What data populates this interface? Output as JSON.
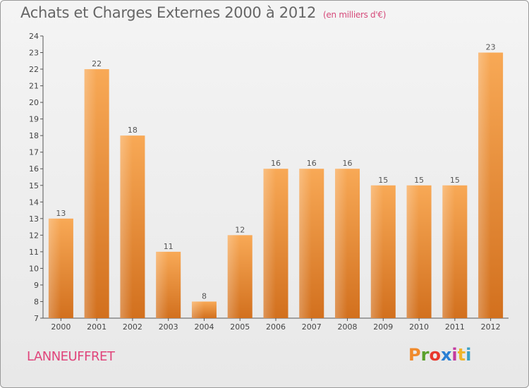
{
  "header": {
    "title": "Achats et Charges Externes 2000 à 2012",
    "subtitle": "(en milliers d'€)"
  },
  "footer": {
    "commune": "LANNEUFFRET",
    "brand": "Proxiti",
    "brand_colors": [
      "#f08a2c",
      "#5aa02c",
      "#e8382d",
      "#2a7fd4",
      "#c43aa0",
      "#f0b52c",
      "#3aa0c4"
    ]
  },
  "colors": {
    "bar": "#f39a3e",
    "bar_dark": "#d9741f",
    "axis": "#555555",
    "grid": "#cccccc"
  },
  "chart_data": {
    "type": "bar",
    "title": "Achats et Charges Externes 2000 à 2012",
    "subtitle": "(en milliers d'€)",
    "xlabel": "",
    "ylabel": "",
    "categories": [
      "2000",
      "2001",
      "2002",
      "2003",
      "2004",
      "2005",
      "2006",
      "2007",
      "2008",
      "2009",
      "2010",
      "2011",
      "2012"
    ],
    "values": [
      13,
      22,
      18,
      11,
      8,
      12,
      16,
      16,
      16,
      15,
      15,
      15,
      23
    ],
    "ylim": [
      7,
      24
    ],
    "yticks": [
      7,
      8,
      9,
      10,
      11,
      12,
      13,
      14,
      15,
      16,
      17,
      18,
      19,
      20,
      21,
      22,
      23,
      24
    ],
    "grid": false,
    "legend": "none"
  }
}
